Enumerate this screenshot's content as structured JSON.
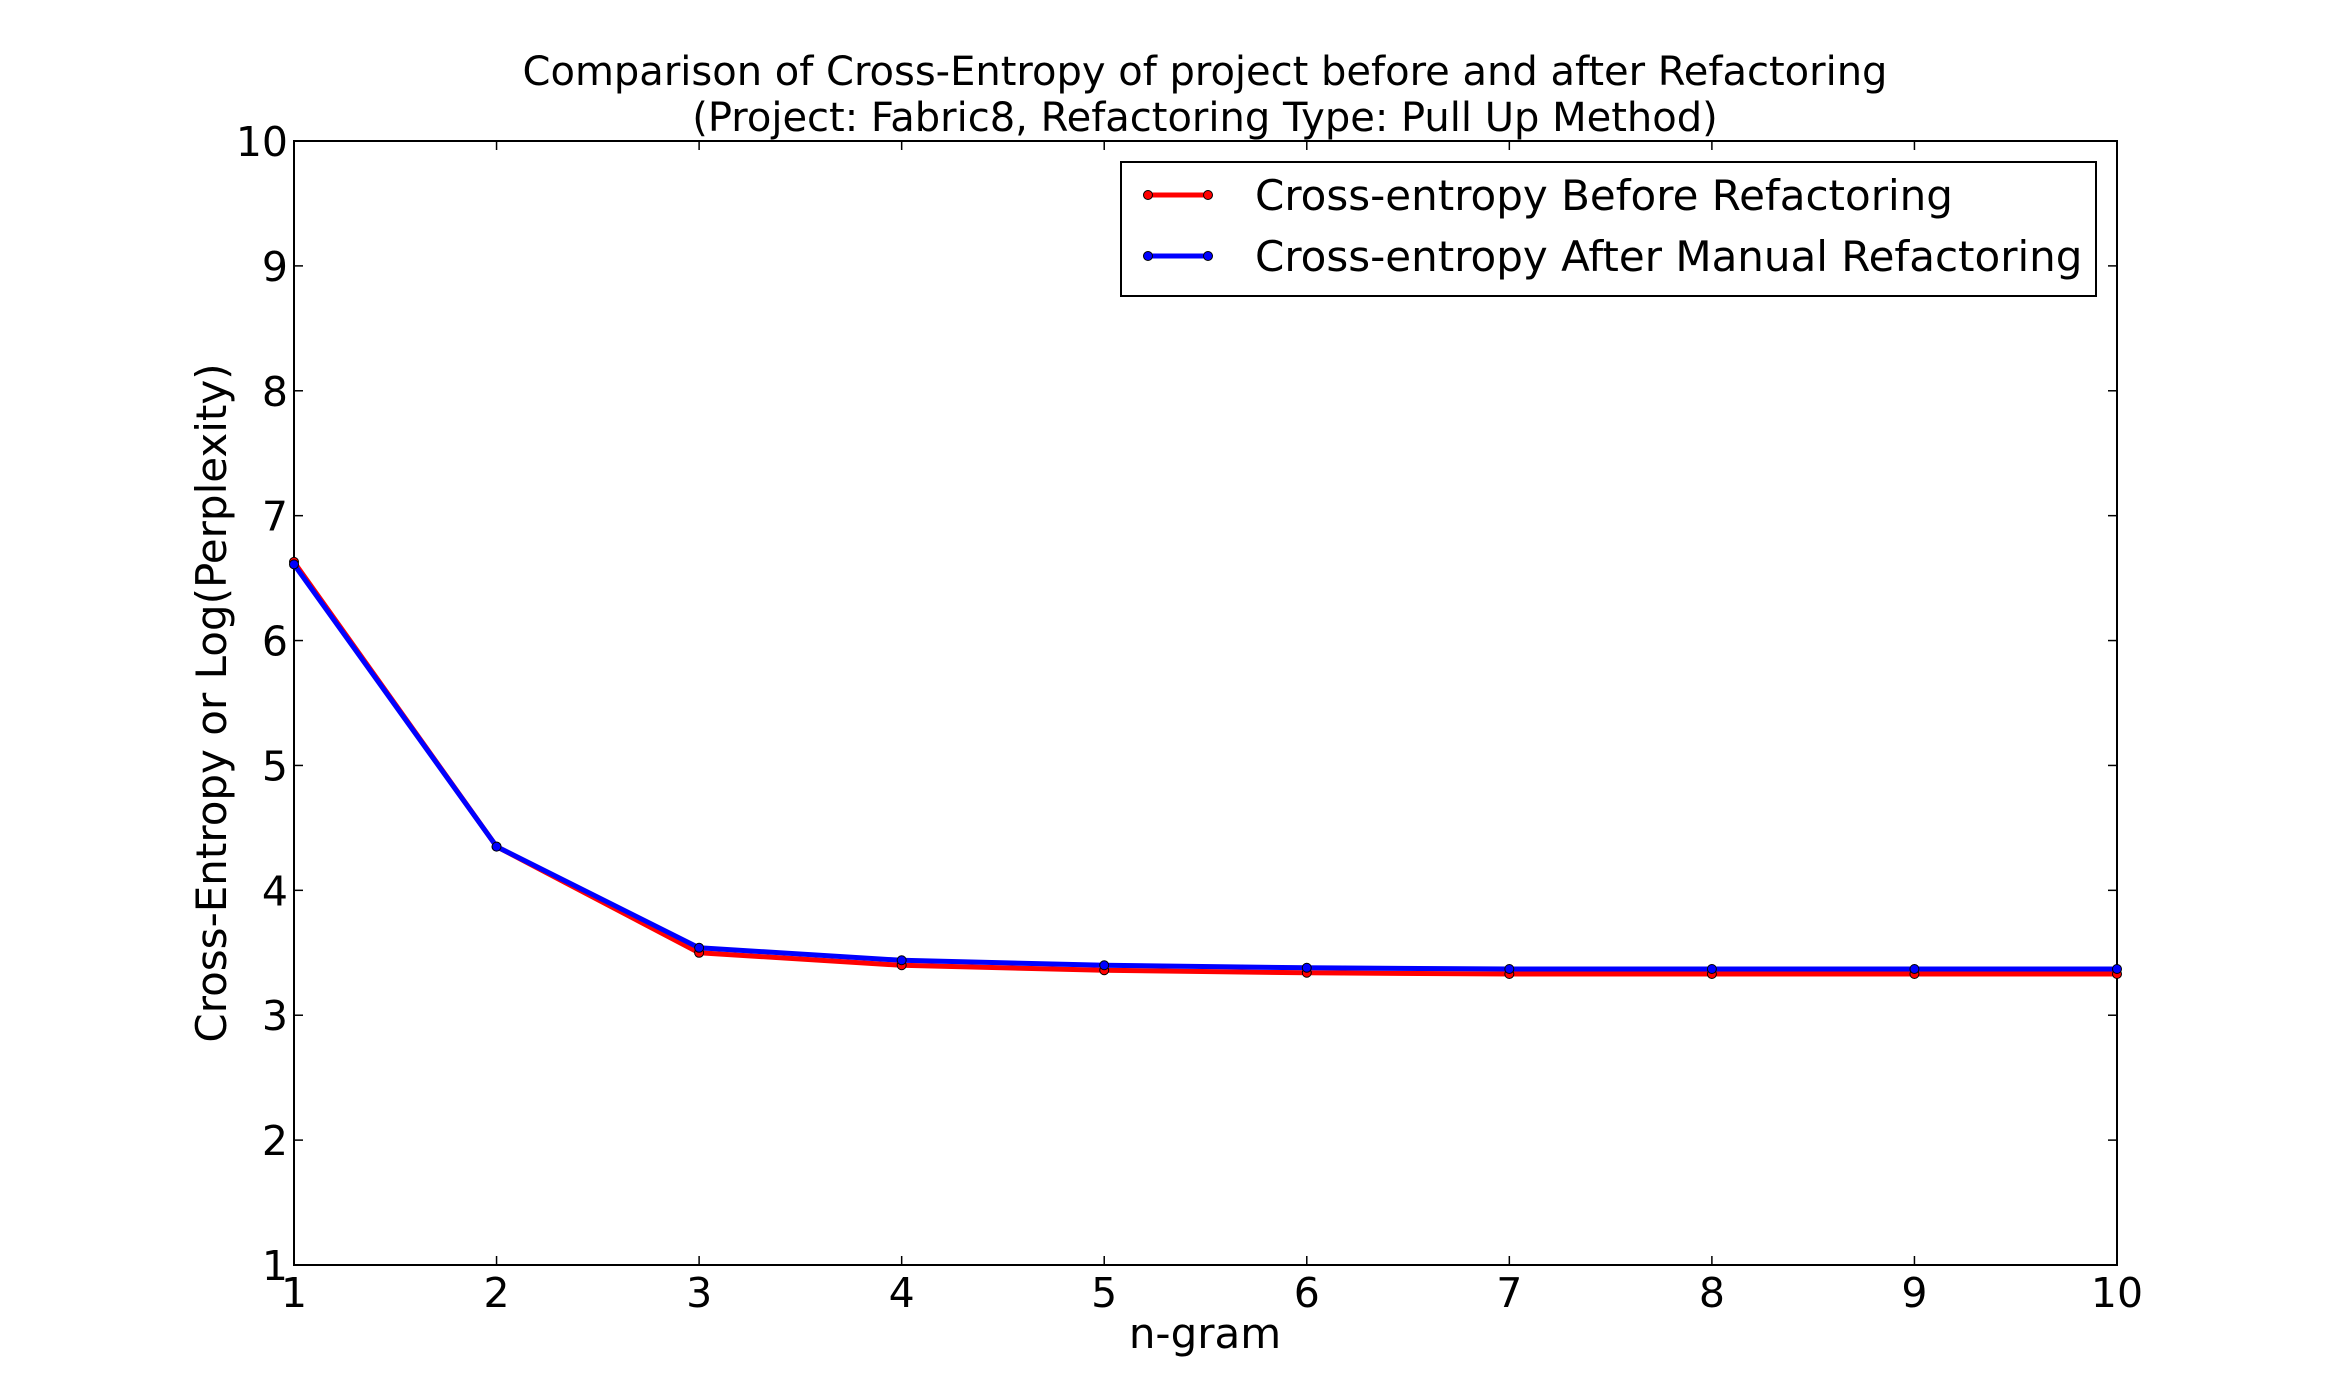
{
  "chart_data": {
    "type": "line",
    "title": "Comparison of Cross-Entropy of project before and after Refactoring",
    "subtitle": "(Project: Fabric8, Refactoring Type: Pull Up Method)",
    "xlabel": "n-gram",
    "ylabel": "Cross-Entropy or Log(Perplexity)",
    "xlim": [
      1,
      10
    ],
    "ylim": [
      1,
      10
    ],
    "xticks": [
      1,
      2,
      3,
      4,
      5,
      6,
      7,
      8,
      9,
      10
    ],
    "yticks": [
      1,
      2,
      3,
      4,
      5,
      6,
      7,
      8,
      9,
      10
    ],
    "grid": false,
    "legend_position": "top-right",
    "x": [
      1,
      2,
      3,
      4,
      5,
      6,
      7,
      8,
      9,
      10
    ],
    "series": [
      {
        "name": "Cross-entropy Before Refactoring",
        "color": "#ff0000",
        "values": [
          6.63,
          4.35,
          3.5,
          3.4,
          3.36,
          3.34,
          3.33,
          3.33,
          3.33,
          3.33
        ]
      },
      {
        "name": "Cross-entropy After Manual Refactoring",
        "color": "#0000ff",
        "values": [
          6.61,
          4.35,
          3.54,
          3.44,
          3.4,
          3.38,
          3.37,
          3.37,
          3.37,
          3.37
        ]
      }
    ]
  }
}
